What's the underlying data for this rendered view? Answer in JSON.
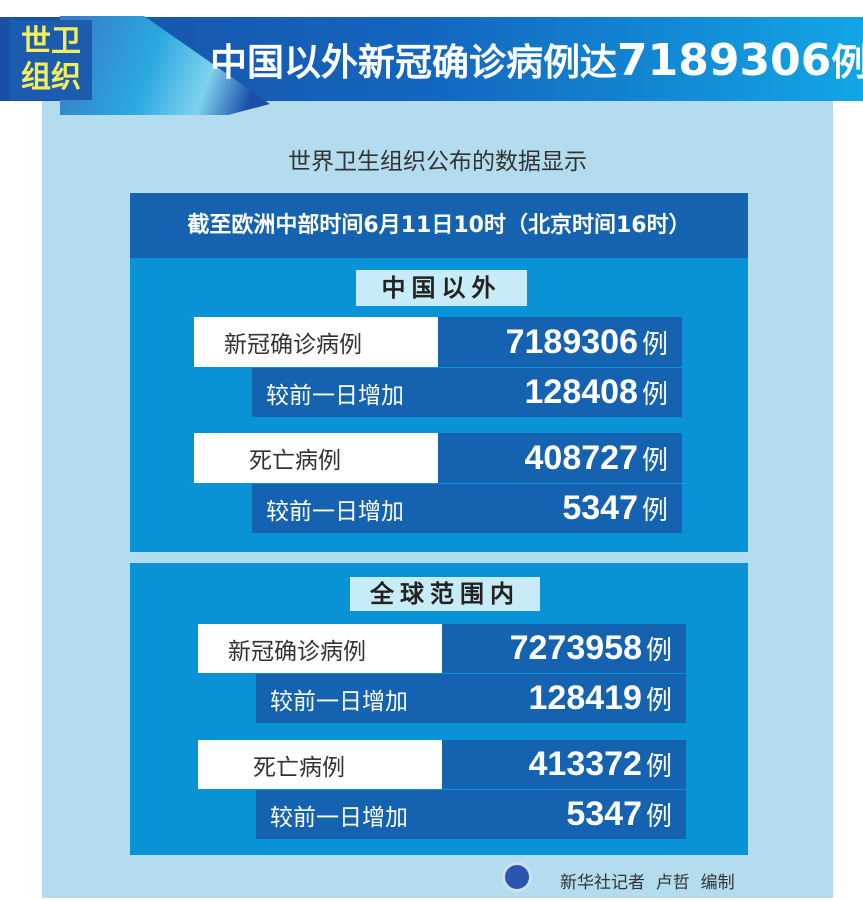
{
  "header": {
    "tag": [
      "世卫",
      "组织"
    ],
    "title_text": "中国以外新冠确诊病例达",
    "title_number": "7189306",
    "title_unit": "例"
  },
  "subtitle": "世界卫生组织公布的数据显示",
  "date_bar": "截至欧洲中部时间6月11日10时（北京时间16时）",
  "sections": [
    {
      "label": "中国以外",
      "rows": [
        {
          "label": "新冠确诊病例",
          "value": "7189306",
          "unit": "例",
          "change_label": "较前一日增加",
          "change": "128408",
          "change_unit": "例"
        },
        {
          "label": "死亡病例",
          "value": "408727",
          "unit": "例",
          "change_label": "较前一日增加",
          "change": "5347",
          "change_unit": "例"
        }
      ]
    },
    {
      "label": "全球范围内",
      "rows": [
        {
          "label": "新冠确诊病例",
          "value": "7273958",
          "unit": "例",
          "change_label": "较前一日增加",
          "change": "128419",
          "change_unit": "例"
        },
        {
          "label": "死亡病例",
          "value": "413372",
          "unit": "例",
          "change_label": "较前一日增加",
          "change": "5347",
          "change_unit": "例"
        }
      ]
    }
  ],
  "credit": "新华社记者  卢哲  编制",
  "colors": {
    "dark_blue": "#1563b0",
    "mid_blue": "#0992d6",
    "light_blue": "#b3dcee",
    "tag_yellow": "#f3ee5a"
  }
}
